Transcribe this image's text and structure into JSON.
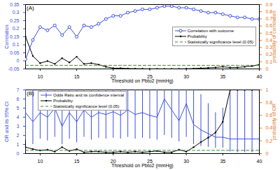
{
  "chart_data": [
    {
      "type": "line",
      "title": "(A)",
      "xlabel": "Threshold on Pbto2 (mmHg)",
      "ylabel": "Correlation",
      "y2label": "probability of correlation",
      "x": [
        8,
        9,
        10,
        11,
        12,
        13,
        14,
        15,
        16,
        17,
        18,
        19,
        20,
        21,
        22,
        23,
        24,
        25,
        26,
        27,
        28,
        29,
        30,
        31,
        32,
        33,
        34,
        35,
        36,
        37,
        38,
        39,
        40
      ],
      "xlim": [
        8,
        40
      ],
      "xticks": [
        10,
        15,
        20,
        25,
        30,
        35,
        40
      ],
      "ylim": [
        -0.05,
        0.35
      ],
      "yticks": [
        -0.05,
        0,
        0.05,
        0.1,
        0.15,
        0.2,
        0.25,
        0.3,
        0.35
      ],
      "y2lim": [
        0,
        0.9
      ],
      "y2ticks": [
        0,
        0.1,
        0.2,
        0.3,
        0.4,
        0.5,
        0.6,
        0.7,
        0.8,
        0.9
      ],
      "legend": "center right",
      "series": [
        {
          "name": "Correlation with outcome",
          "color": "#3b4fe0",
          "marker": "circle",
          "values": [
            0.01,
            0.13,
            0.21,
            0.19,
            0.22,
            0.16,
            0.21,
            0.15,
            0.22,
            0.21,
            0.23,
            0.26,
            0.28,
            0.28,
            0.3,
            0.31,
            0.32,
            0.32,
            0.33,
            0.34,
            0.34,
            0.33,
            0.33,
            0.32,
            0.31,
            0.3,
            0.3,
            0.29,
            0.28,
            0.27,
            0.27,
            0.26,
            0.26
          ]
        },
        {
          "name": "Probability",
          "color": "#000000",
          "marker": "dot",
          "axis": "y2",
          "values": [
            0.45,
            0.18,
            0.08,
            0.11,
            0.07,
            0.15,
            0.09,
            0.17,
            0.07,
            0.08,
            0.06,
            0.03,
            0.01,
            0.01,
            0.005,
            0.003,
            0.002,
            0.001,
            0.001,
            0.001,
            0.001,
            0.001,
            0.002,
            0.005,
            0.01,
            0.015,
            0.02,
            0.03,
            0.02,
            0.02,
            0.03,
            0.04,
            0.06
          ]
        },
        {
          "name": "Statistically significance level (0.05)",
          "color": "#2e8b2e",
          "line_style": "dashed",
          "axis": "y2",
          "values": [
            0.05,
            0.05,
            0.05,
            0.05,
            0.05,
            0.05,
            0.05,
            0.05,
            0.05,
            0.05,
            0.05,
            0.05,
            0.05,
            0.05,
            0.05,
            0.05,
            0.05,
            0.05,
            0.05,
            0.05,
            0.05,
            0.05,
            0.05,
            0.05,
            0.05,
            0.05,
            0.05,
            0.05,
            0.05,
            0.05,
            0.05,
            0.05,
            0.05
          ]
        }
      ]
    },
    {
      "type": "line",
      "title": "(B)",
      "xlabel": "Threshold on Pbto2 (mmHg)",
      "ylabel": "OR and its 95% CI",
      "y2label": "probability of OR",
      "x": [
        8,
        9,
        10,
        11,
        12,
        13,
        14,
        15,
        16,
        17,
        18,
        19,
        20,
        21,
        22,
        23,
        24,
        25,
        26,
        27,
        28,
        29,
        30,
        31,
        32,
        33,
        34,
        35,
        36,
        37,
        38,
        39,
        40
      ],
      "xlim": [
        8,
        40
      ],
      "xticks": [
        10,
        15,
        20,
        25,
        30,
        35,
        40
      ],
      "ylim": [
        0,
        7
      ],
      "yticks": [
        0,
        1,
        2,
        3,
        4,
        5,
        6,
        7
      ],
      "y2lim": [
        0,
        1
      ],
      "y2ticks": [
        0,
        0.2,
        0.4,
        0.6,
        0.8,
        1
      ],
      "legend": "upper left",
      "series": [
        {
          "name": "Odds Ratio and its confidence interval",
          "color": "#3b4fe0",
          "values": [
            4.5,
            3.5,
            4.5,
            4.0,
            5.0,
            3.0,
            4.5,
            3.5,
            4.8,
            4.0,
            4.5,
            4.3,
            4.6,
            4.2,
            4.8,
            4.3,
            4.5,
            4.2,
            4.0,
            6.0,
            4.8,
            3.6,
            5.5,
            3.2,
            2.6,
            2.2,
            1.8,
            1.8,
            1.6,
            1.6,
            1.6,
            1.6,
            1.6
          ],
          "ci_low": [
            1.5,
            1.0,
            1.6,
            1.4,
            1.8,
            1.0,
            1.6,
            1.2,
            1.8,
            1.5,
            1.7,
            1.6,
            1.7,
            1.6,
            1.8,
            1.6,
            1.7,
            1.6,
            1.5,
            2.0,
            1.7,
            1.3,
            1.8,
            1.0,
            0.8,
            0.7,
            0.6,
            0.6,
            0.2,
            0.1,
            0.1,
            0.1,
            0.1
          ],
          "ci_high": [
            7,
            7,
            7,
            7,
            7,
            7,
            7,
            7,
            7,
            7,
            7,
            7,
            7,
            7,
            7,
            7,
            7,
            7,
            7,
            7,
            7,
            7,
            7,
            7,
            6.5,
            5.5,
            4.5,
            5,
            7,
            7,
            7,
            7,
            7
          ]
        },
        {
          "name": "Probability",
          "color": "#000000",
          "marker": "dot",
          "axis": "y2",
          "values": [
            0.1,
            0.07,
            0.05,
            0.06,
            0.03,
            0.1,
            0.04,
            0.07,
            0.02,
            0.03,
            0.03,
            0.02,
            0.02,
            0.03,
            0.02,
            0.03,
            0.02,
            0.03,
            0.04,
            0.02,
            0.02,
            0.06,
            0.03,
            0.1,
            0.18,
            0.25,
            0.33,
            0.5,
            1,
            1,
            1,
            1,
            1
          ]
        },
        {
          "name": "Statistically significance level (0.05)",
          "color": "#2e8b2e",
          "line_style": "dashed",
          "axis": "y2",
          "values": [
            0.05,
            0.05,
            0.05,
            0.05,
            0.05,
            0.05,
            0.05,
            0.05,
            0.05,
            0.05,
            0.05,
            0.05,
            0.05,
            0.05,
            0.05,
            0.05,
            0.05,
            0.05,
            0.05,
            0.05,
            0.05,
            0.05,
            0.05,
            0.05,
            0.05,
            0.05,
            0.05,
            0.05,
            0.05,
            0.05,
            0.05,
            0.05,
            0.05
          ]
        }
      ]
    }
  ]
}
